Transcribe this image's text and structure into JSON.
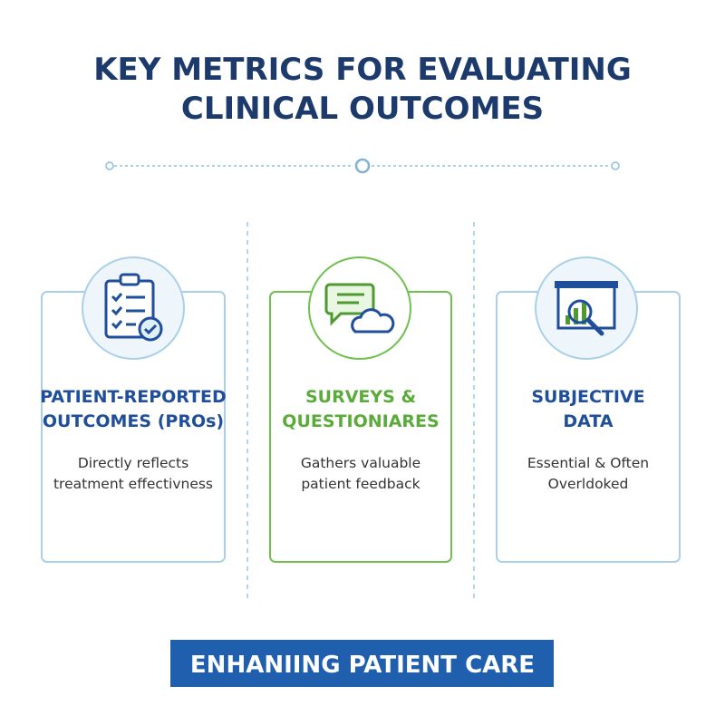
{
  "header": {
    "title_lines": [
      "KEY METRICS FOR EVALUATING",
      "CLINICAL OUTCOMES"
    ]
  },
  "cards": [
    {
      "title_lines": [
        "PATIENT-REPORTED",
        "OUTCOMES (PROs)"
      ],
      "description_lines": [
        "Directly reflects",
        "treatment effectivness"
      ]
    },
    {
      "title_lines": [
        "SURVEYS &",
        "QUESTIONIARES"
      ],
      "description_lines": [
        "Gathers valuable",
        "patient feedback"
      ]
    },
    {
      "title_lines": [
        "SUBJECTIVE",
        "DATA"
      ],
      "description_lines": [
        "Essential & Often",
        "Overldoked"
      ]
    }
  ],
  "footer": {
    "label": "ENHANIING PATIENT CARE"
  }
}
